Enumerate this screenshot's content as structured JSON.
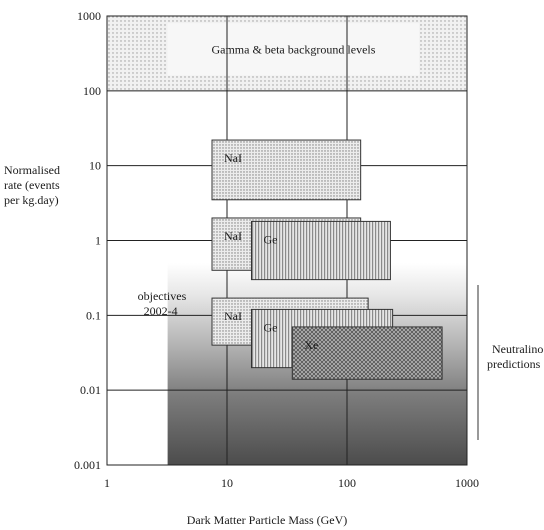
{
  "chart_data": {
    "type": "other",
    "xlabel": "Dark Matter Particle Mass (GeV)",
    "ylabel_lines": [
      "Normalised",
      "rate (events",
      "per kg.day)"
    ],
    "x_scale": "log",
    "y_scale": "log",
    "xlim": [
      1,
      1000
    ],
    "ylim": [
      0.001,
      1000
    ],
    "x_ticks": [
      "1",
      "10",
      "100",
      "1000"
    ],
    "y_ticks": [
      "1000",
      "100",
      "10",
      "1",
      "0.1",
      "0.01",
      "0.001"
    ],
    "grid": true,
    "background_band": {
      "label": "Gamma & beta background levels",
      "x": [
        1,
        1000
      ],
      "y": [
        100,
        1000
      ]
    },
    "regions": [
      {
        "label": "NaI",
        "x": [
          7.5,
          130
        ],
        "y": [
          3.5,
          22
        ]
      },
      {
        "label": "NaI",
        "x": [
          7.5,
          130
        ],
        "y": [
          0.4,
          2
        ]
      },
      {
        "label": "Ge",
        "x": [
          16,
          230
        ],
        "y": [
          0.3,
          1.8
        ]
      },
      {
        "label": "NaI",
        "x": [
          7.5,
          150
        ],
        "y": [
          0.04,
          0.17
        ]
      },
      {
        "label": "Ge",
        "x": [
          16,
          240
        ],
        "y": [
          0.02,
          0.12
        ]
      },
      {
        "label": "Xe",
        "x": [
          35,
          620
        ],
        "y": [
          0.014,
          0.07
        ]
      }
    ],
    "neutralino_shading": {
      "x": [
        3.2,
        1000
      ],
      "y": [
        0.001,
        0.5
      ]
    },
    "annotations": [
      {
        "text_lines": [
          "objectives",
          "2002-4"
        ],
        "x": 3.2,
        "y": 0.12
      },
      {
        "text_lines": [
          "Neutralino",
          "predictions"
        ],
        "x": 1000,
        "y": 0.03
      }
    ]
  }
}
